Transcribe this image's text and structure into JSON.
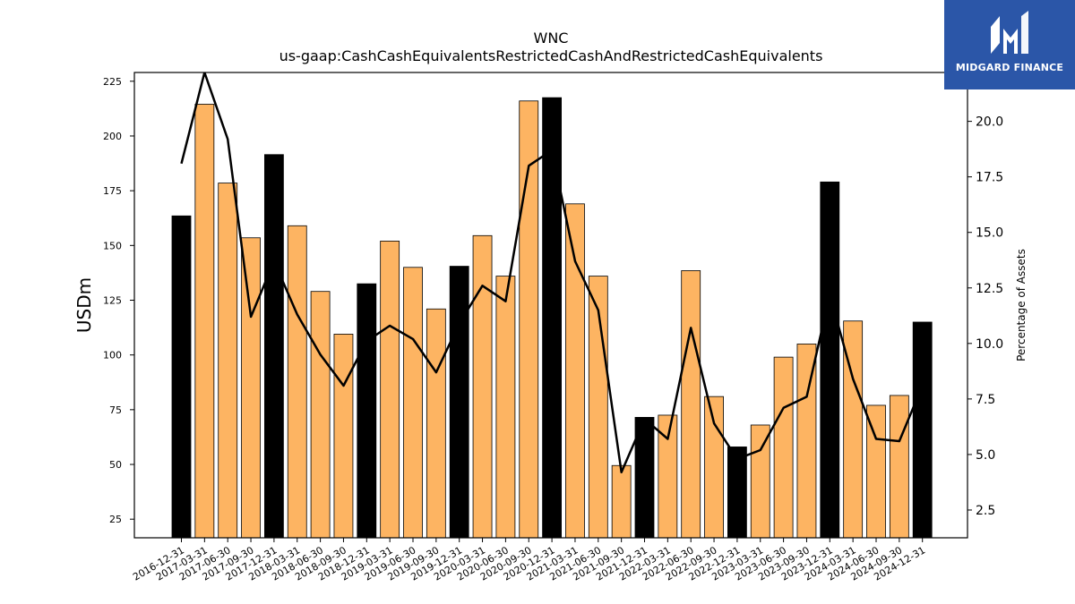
{
  "logo": {
    "text": "MIDGARD FINANCE",
    "icon": "midgard-m-logo-icon"
  },
  "chart_data": {
    "type": "bar",
    "title": "WNC",
    "subtitle": "us-gaap:CashCashEquivalentsRestrictedCashAndRestrictedCashEquivalents",
    "ylabel": "USDm",
    "y2label": "Percentage of Assets",
    "ylim": [
      16.5,
      229
    ],
    "y2lim": [
      1.25,
      22.2
    ],
    "yticks": [
      25,
      50,
      75,
      100,
      125,
      150,
      175,
      200,
      225
    ],
    "y2ticks": [
      2.5,
      5.0,
      7.5,
      10.0,
      12.5,
      15.0,
      17.5,
      20.0
    ],
    "colors": {
      "bar": "#fdb462",
      "bar_year_end": "#000000",
      "line": "#000000"
    },
    "categories": [
      "2016-12-31",
      "2017-03-31",
      "2017-06-30",
      "2017-09-30",
      "2017-12-31",
      "2018-03-31",
      "2018-06-30",
      "2018-09-30",
      "2018-12-31",
      "2019-03-31",
      "2019-06-30",
      "2019-09-30",
      "2019-12-31",
      "2020-03-31",
      "2020-06-30",
      "2020-09-30",
      "2020-12-31",
      "2021-03-31",
      "2021-06-30",
      "2021-09-30",
      "2021-12-31",
      "2022-03-31",
      "2022-06-30",
      "2022-09-30",
      "2022-12-31",
      "2023-03-31",
      "2023-06-30",
      "2023-09-30",
      "2023-12-31",
      "2024-03-31",
      "2024-06-30",
      "2024-09-30",
      "2024-12-31"
    ],
    "series": [
      {
        "kind": "bar",
        "axis": "left",
        "values": [
          163.5,
          214.5,
          178.5,
          153.5,
          191.5,
          159,
          129,
          109.5,
          132.5,
          152,
          140,
          121,
          140.5,
          154.5,
          136,
          216,
          217.5,
          169,
          136,
          49.5,
          71.5,
          72.5,
          138.5,
          81,
          58,
          68,
          99,
          105,
          179,
          115.5,
          77,
          81.5,
          115
        ]
      },
      {
        "kind": "line",
        "axis": "right",
        "values": [
          18.1,
          22.2,
          19.2,
          11.2,
          13.7,
          11.3,
          9.5,
          8.1,
          10.1,
          10.8,
          10.2,
          8.7,
          10.9,
          12.6,
          11.9,
          18.0,
          18.7,
          13.7,
          11.5,
          4.2,
          6.6,
          5.7,
          10.7,
          6.4,
          4.8,
          5.2,
          7.1,
          7.6,
          12.2,
          8.4,
          5.7,
          5.6,
          8.1
        ]
      }
    ]
  }
}
